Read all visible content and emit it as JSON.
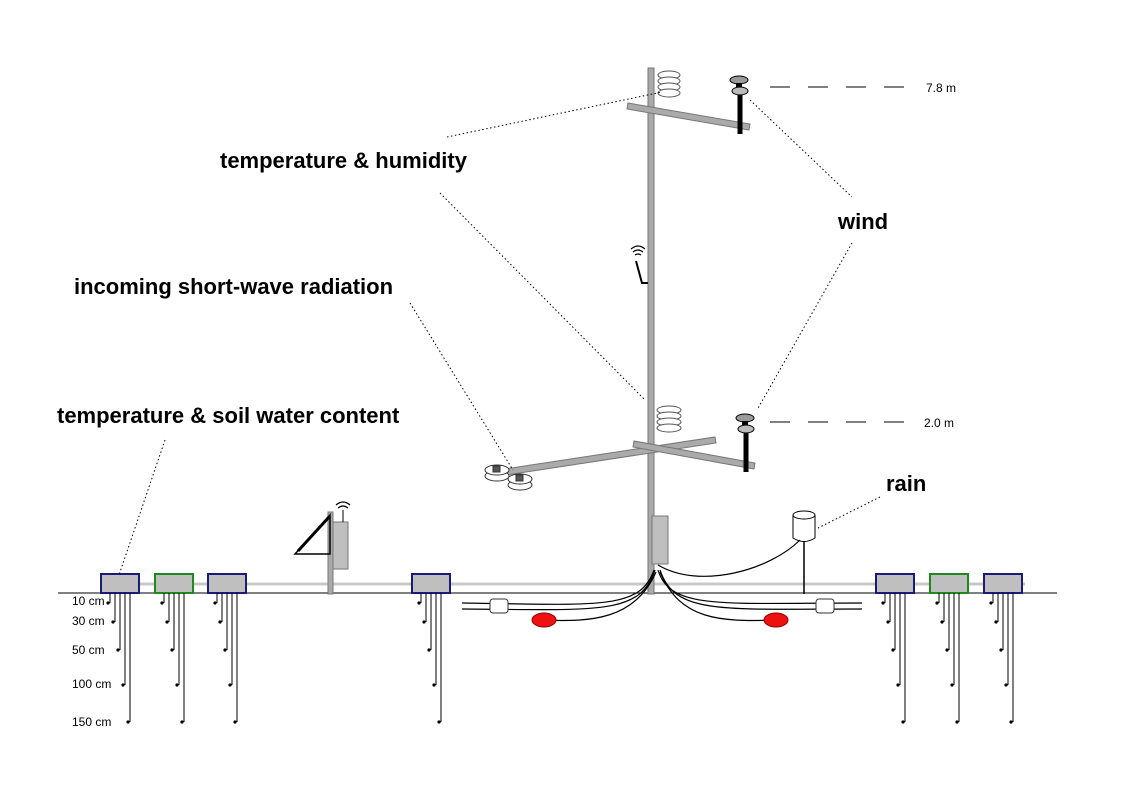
{
  "labels": {
    "temperature_humidity": "temperature & humidity",
    "wind": "wind",
    "radiation": "incoming short-wave radiation",
    "soil": "temperature & soil water content",
    "rain": "rain"
  },
  "heights": {
    "upper": "7.8 m",
    "lower": "2.0 m"
  },
  "depths": [
    "10 cm",
    "30 cm",
    "50 cm",
    "100 cm",
    "150 cm"
  ],
  "colors": {
    "pole": "#aaaaaa",
    "blue_logger": "#1a1a7a",
    "green_logger": "#1e8a1e",
    "logger_fill": "#bfbfbf",
    "marker_red": "#ee1111",
    "ground_cable": "#c8c8c8"
  },
  "icons": [
    "wireless-signal-icon",
    "solar-panel-icon",
    "anemometer-icon",
    "radiation-shield-icon",
    "pyranometer-icon",
    "rain-gauge-icon"
  ]
}
